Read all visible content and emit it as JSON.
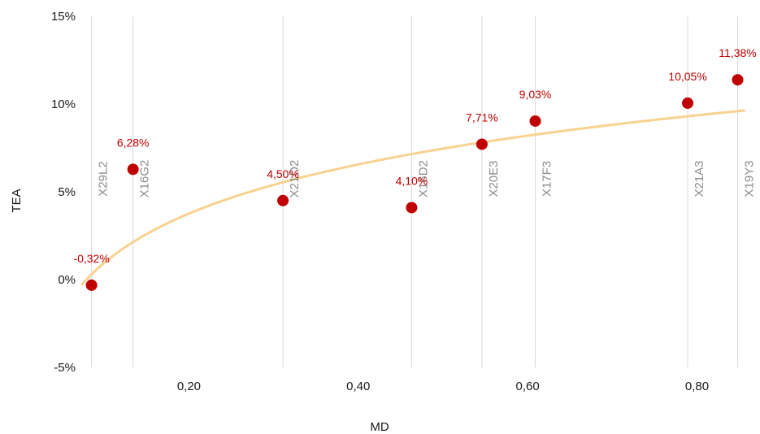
{
  "chart_data": {
    "type": "scatter",
    "title": "",
    "xlabel": "MD",
    "ylabel": "TEA",
    "xlim": [
      0.07,
      0.86
    ],
    "ylim": [
      -5,
      15
    ],
    "x_ticks": [
      {
        "value": 0.2,
        "label": "0,20"
      },
      {
        "value": 0.4,
        "label": "0,40"
      },
      {
        "value": 0.6,
        "label": "0,60"
      },
      {
        "value": 0.8,
        "label": "0,80"
      }
    ],
    "y_ticks": [
      {
        "value": -5,
        "label": "-5%"
      },
      {
        "value": 0,
        "label": "0%"
      },
      {
        "value": 5,
        "label": "5%"
      },
      {
        "value": 10,
        "label": "10%"
      },
      {
        "value": 15,
        "label": "15%"
      }
    ],
    "points": [
      {
        "name": "X29L2",
        "x": 0.085,
        "y": -0.32,
        "label": "-0,32%"
      },
      {
        "name": "X16G2",
        "x": 0.134,
        "y": 6.28,
        "label": "6,28%"
      },
      {
        "name": "X21O2",
        "x": 0.311,
        "y": 4.5,
        "label": "4,50%"
      },
      {
        "name": "X16D2",
        "x": 0.463,
        "y": 4.1,
        "label": "4,10%"
      },
      {
        "name": "X20E3",
        "x": 0.546,
        "y": 7.71,
        "label": "7,71%"
      },
      {
        "name": "X17F3",
        "x": 0.609,
        "y": 9.03,
        "label": "9,03%"
      },
      {
        "name": "X21A3",
        "x": 0.789,
        "y": 10.05,
        "label": "10,05%"
      },
      {
        "name": "X19Y3",
        "x": 0.848,
        "y": 11.38,
        "label": "11,38%"
      }
    ],
    "trendline": {
      "type": "logarithmic",
      "a": 10.26,
      "b": 4.04,
      "x_range": [
        0.073,
        0.857
      ]
    },
    "grid": {
      "vertical_per_point": true,
      "horizontal": false
    },
    "colors": {
      "marker": "#c00000",
      "trendline": "#f8d290",
      "gridline": "#d9d9d9",
      "point_label": "#c00000",
      "category_label": "#8c8c8c"
    }
  }
}
